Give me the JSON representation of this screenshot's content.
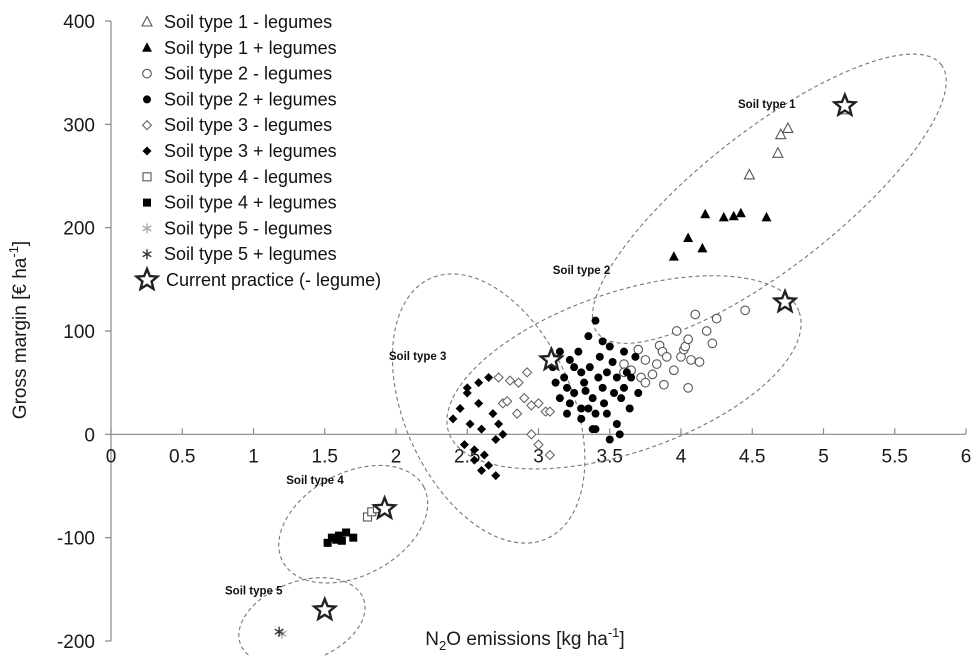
{
  "chart_data": {
    "type": "scatter",
    "xlabel": {
      "main": "N",
      "sub": "2",
      "rest": "O emissions [kg ha",
      "sup": "-1",
      "end": "]"
    },
    "ylabel": {
      "main": "Gross margin [€ ha",
      "sup": "-1",
      "end": "]"
    },
    "xlim": [
      0,
      6
    ],
    "ylim": [
      -200,
      400
    ],
    "xticks": [
      "0",
      "0.5",
      "1",
      "1.5",
      "2",
      "2.5",
      "3",
      "3.5",
      "4",
      "4.5",
      "5",
      "5.5",
      "6"
    ],
    "yticks": [
      "-200",
      "-100",
      "0",
      "100",
      "200",
      "300",
      "400"
    ],
    "grid": false,
    "legend_position": "top-left",
    "series": [
      {
        "name": "Soil type 1 - legumes",
        "marker": "triangle-open",
        "points": [
          [
            4.48,
            251
          ],
          [
            4.68,
            272
          ],
          [
            4.7,
            290
          ],
          [
            4.75,
            296
          ],
          [
            5.15,
            314
          ]
        ]
      },
      {
        "name": "Soil type 1 + legumes",
        "marker": "triangle-filled",
        "points": [
          [
            3.95,
            172
          ],
          [
            4.05,
            190
          ],
          [
            4.15,
            180
          ],
          [
            4.17,
            213
          ],
          [
            4.3,
            210
          ],
          [
            4.37,
            211
          ],
          [
            4.42,
            214
          ],
          [
            4.6,
            210
          ]
        ]
      },
      {
        "name": "Soil type 2 - legumes",
        "marker": "circle-open",
        "points": [
          [
            3.6,
            68
          ],
          [
            3.65,
            62
          ],
          [
            3.7,
            82
          ],
          [
            3.72,
            55
          ],
          [
            3.75,
            50
          ],
          [
            3.8,
            58
          ],
          [
            3.83,
            68
          ],
          [
            3.85,
            86
          ],
          [
            3.87,
            80
          ],
          [
            3.9,
            75
          ],
          [
            3.95,
            62
          ],
          [
            3.97,
            100
          ],
          [
            4.0,
            75
          ],
          [
            4.02,
            82
          ],
          [
            4.03,
            85
          ],
          [
            4.05,
            92
          ],
          [
            4.07,
            72
          ],
          [
            4.1,
            116
          ],
          [
            4.13,
            70
          ],
          [
            4.18,
            100
          ],
          [
            4.22,
            88
          ],
          [
            4.25,
            112
          ],
          [
            4.45,
            120
          ],
          [
            3.88,
            48
          ],
          [
            4.05,
            45
          ],
          [
            3.6,
            60
          ],
          [
            3.75,
            72
          ]
        ]
      },
      {
        "name": "Soil type 2 + legumes",
        "marker": "circle-filled",
        "points": [
          [
            3.1,
            65
          ],
          [
            3.12,
            50
          ],
          [
            3.15,
            35
          ],
          [
            3.18,
            55
          ],
          [
            3.2,
            45
          ],
          [
            3.22,
            72
          ],
          [
            3.22,
            30
          ],
          [
            3.25,
            40
          ],
          [
            3.28,
            80
          ],
          [
            3.3,
            60
          ],
          [
            3.3,
            25
          ],
          [
            3.32,
            50
          ],
          [
            3.33,
            42
          ],
          [
            3.35,
            95
          ],
          [
            3.36,
            65
          ],
          [
            3.38,
            35
          ],
          [
            3.4,
            20
          ],
          [
            3.4,
            110
          ],
          [
            3.42,
            55
          ],
          [
            3.43,
            75
          ],
          [
            3.45,
            45
          ],
          [
            3.46,
            30
          ],
          [
            3.48,
            60
          ],
          [
            3.48,
            20
          ],
          [
            3.5,
            85
          ],
          [
            3.52,
            70
          ],
          [
            3.53,
            40
          ],
          [
            3.55,
            55
          ],
          [
            3.55,
            10
          ],
          [
            3.57,
            0
          ],
          [
            3.58,
            35
          ],
          [
            3.6,
            80
          ],
          [
            3.6,
            45
          ],
          [
            3.62,
            60
          ],
          [
            3.64,
            25
          ],
          [
            3.5,
            -5
          ],
          [
            3.4,
            5
          ],
          [
            3.3,
            15
          ],
          [
            3.2,
            20
          ],
          [
            3.25,
            65
          ],
          [
            3.35,
            25
          ],
          [
            3.45,
            90
          ],
          [
            3.65,
            55
          ],
          [
            3.7,
            40
          ],
          [
            3.68,
            75
          ],
          [
            3.15,
            80
          ],
          [
            3.38,
            5
          ]
        ]
      },
      {
        "name": "Soil type 3 - legumes",
        "marker": "diamond-open",
        "points": [
          [
            2.75,
            30
          ],
          [
            2.78,
            32
          ],
          [
            2.8,
            52
          ],
          [
            2.85,
            20
          ],
          [
            2.9,
            35
          ],
          [
            2.95,
            28
          ],
          [
            3.0,
            30
          ],
          [
            3.05,
            22
          ],
          [
            3.08,
            22
          ],
          [
            2.95,
            0
          ],
          [
            3.0,
            -10
          ],
          [
            3.08,
            -20
          ],
          [
            2.72,
            55
          ],
          [
            2.86,
            50
          ],
          [
            2.92,
            60
          ]
        ]
      },
      {
        "name": "Soil type 3 + legumes",
        "marker": "diamond-filled",
        "points": [
          [
            2.4,
            15
          ],
          [
            2.45,
            25
          ],
          [
            2.48,
            -10
          ],
          [
            2.5,
            40
          ],
          [
            2.52,
            10
          ],
          [
            2.55,
            -15
          ],
          [
            2.58,
            30
          ],
          [
            2.6,
            5
          ],
          [
            2.62,
            -20
          ],
          [
            2.65,
            55
          ],
          [
            2.65,
            -30
          ],
          [
            2.68,
            20
          ],
          [
            2.7,
            -5
          ],
          [
            2.72,
            10
          ],
          [
            2.75,
            0
          ],
          [
            2.55,
            -25
          ],
          [
            2.6,
            -35
          ],
          [
            2.7,
            -40
          ],
          [
            2.5,
            45
          ],
          [
            2.58,
            50
          ]
        ]
      },
      {
        "name": "Soil type 4 - legumes",
        "marker": "square-open",
        "points": [
          [
            1.8,
            -80
          ],
          [
            1.83,
            -75
          ],
          [
            1.87,
            -72
          ]
        ]
      },
      {
        "name": "Soil type 4 + legumes",
        "marker": "square-filled",
        "points": [
          [
            1.52,
            -105
          ],
          [
            1.55,
            -100
          ],
          [
            1.58,
            -102
          ],
          [
            1.6,
            -98
          ],
          [
            1.65,
            -95
          ],
          [
            1.7,
            -100
          ],
          [
            1.62,
            -103
          ]
        ]
      },
      {
        "name": "Soil type 5 - legumes",
        "marker": "asterisk-light",
        "points": [
          [
            1.2,
            -193
          ]
        ]
      },
      {
        "name": "Soil type 5 + legumes",
        "marker": "asterisk-dark",
        "points": [
          [
            1.18,
            -191
          ]
        ]
      },
      {
        "name": "Current practice (- legume)",
        "marker": "star",
        "points": [
          [
            5.15,
            318
          ],
          [
            4.73,
            128
          ],
          [
            3.09,
            72
          ],
          [
            1.92,
            -72
          ],
          [
            1.5,
            -170
          ]
        ]
      }
    ],
    "annotations": [
      {
        "text": "Soil type 1",
        "x": 4.4,
        "y": 316
      },
      {
        "text": "Soil type 2",
        "x": 3.1,
        "y": 155
      },
      {
        "text": "Soil type 3",
        "x": 1.95,
        "y": 72
      },
      {
        "text": "Soil type 4",
        "x": 1.23,
        "y": -48
      },
      {
        "text": "Soil type 5",
        "x": 0.8,
        "y": -155
      }
    ],
    "clusters": [
      {
        "cx": 4.62,
        "cy": 228,
        "rx": 1.53,
        "ry": 0.48,
        "angle_deg": -38
      },
      {
        "cx": 3.6,
        "cy": 60,
        "rx": 1.3,
        "ry": 0.56,
        "angle_deg": -19
      },
      {
        "cx": 2.65,
        "cy": 25,
        "rx": 0.59,
        "ry": 1.0,
        "angle_deg": -24
      },
      {
        "cx": 1.7,
        "cy": -87,
        "rx": 0.56,
        "ry": 0.36,
        "angle_deg": -28
      },
      {
        "cx": 1.34,
        "cy": -181,
        "rx": 0.46,
        "ry": 0.28,
        "angle_deg": -20
      }
    ]
  }
}
